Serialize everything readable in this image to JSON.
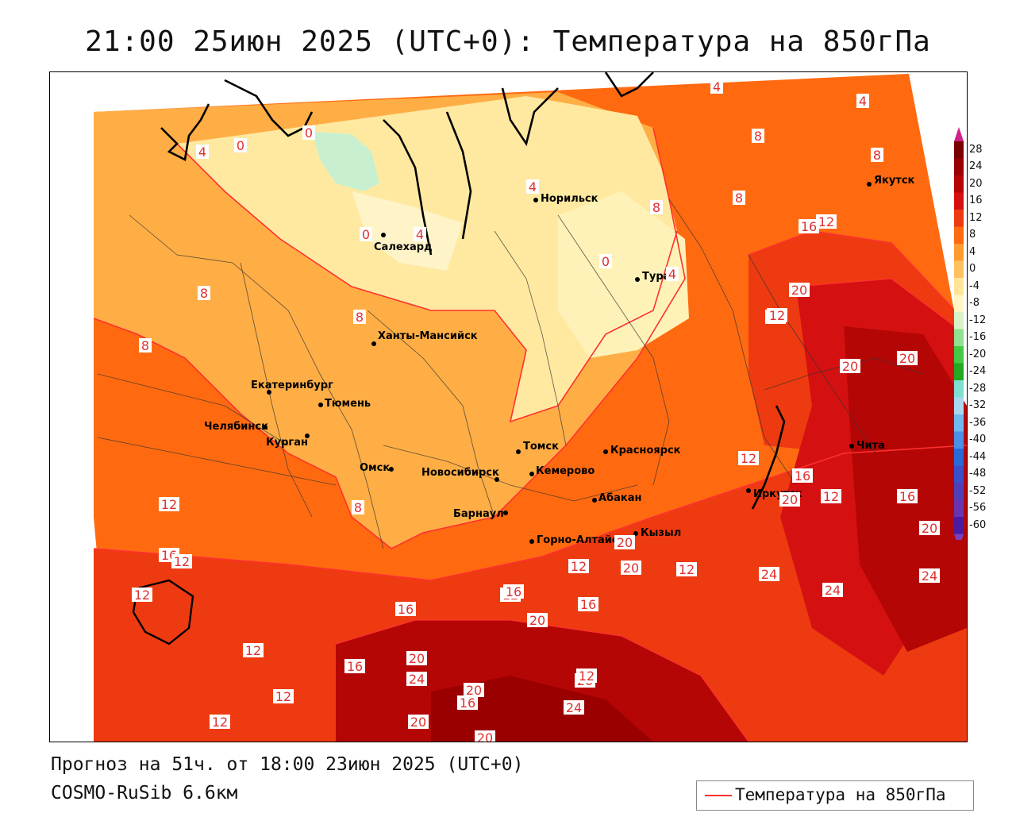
{
  "title": "21:00 25июн 2025 (UTC+0): Температура на 850гПа",
  "footer": {
    "forecast": "Прогноз на 51ч. от 18:00 23июн 2025 (UTC+0)",
    "model": "COSMO-RuSib 6.6км"
  },
  "legend": {
    "label": "Температура на 850гПа",
    "line_color": "#ff3030"
  },
  "colorbar": {
    "ticks": [
      "28",
      "24",
      "20",
      "16",
      "12",
      "8",
      "4",
      "0",
      "-4",
      "-8",
      "-12",
      "-16",
      "-20",
      "-24",
      "-28",
      "-32",
      "-36",
      "-40",
      "-44",
      "-48",
      "-52",
      "-56",
      "-60"
    ],
    "colors": [
      "#7a0000",
      "#9a0000",
      "#b50606",
      "#d41010",
      "#ee3a10",
      "#ff6a10",
      "#ff9c30",
      "#ffc060",
      "#ffe595",
      "#fff6c4",
      "#d8f3c8",
      "#8fe08f",
      "#44c944",
      "#22aa22",
      "#7fe0d0",
      "#a8d8f0",
      "#70b8f0",
      "#4a90e8",
      "#2a6ad8",
      "#3a50c8",
      "#5040b8",
      "#6a34b0",
      "#4a1aa0"
    ],
    "top_arrow_color": "#d0208a",
    "bottom_arrow_color": "#7a40c0"
  },
  "cities": [
    {
      "name": "Якутск"
    },
    {
      "name": "Норильск"
    },
    {
      "name": "Салехард"
    },
    {
      "name": "Тура"
    },
    {
      "name": "Ханты-Мансийск"
    },
    {
      "name": "Екатеринбург"
    },
    {
      "name": "Тюмень"
    },
    {
      "name": "Челябинск"
    },
    {
      "name": "Курган"
    },
    {
      "name": "Омск"
    },
    {
      "name": "Новосибирск"
    },
    {
      "name": "Томск"
    },
    {
      "name": "Кемерово"
    },
    {
      "name": "Красноярск"
    },
    {
      "name": "Барнаул"
    },
    {
      "name": "Абакан"
    },
    {
      "name": "Горно-Алтайск"
    },
    {
      "name": "Кызыл"
    },
    {
      "name": "Иркутск"
    },
    {
      "name": "Чита"
    }
  ],
  "isotherm_labels": [
    "4",
    "0",
    "4",
    "0",
    "0",
    "4",
    "4",
    "8",
    "4",
    "8",
    "8",
    "0",
    "4",
    "8",
    "8",
    "8",
    "8",
    "12",
    "16",
    "20",
    "12",
    "20",
    "20",
    "12",
    "16",
    "12",
    "20",
    "12",
    "16",
    "20",
    "24",
    "24",
    "24",
    "20",
    "12",
    "8",
    "12",
    "16",
    "12",
    "12",
    "16",
    "20",
    "12",
    "20",
    "24",
    "20",
    "16",
    "20",
    "24",
    "20",
    "20",
    "16",
    "20",
    "12",
    "16",
    "12",
    "12",
    "12",
    "12",
    "16"
  ]
}
